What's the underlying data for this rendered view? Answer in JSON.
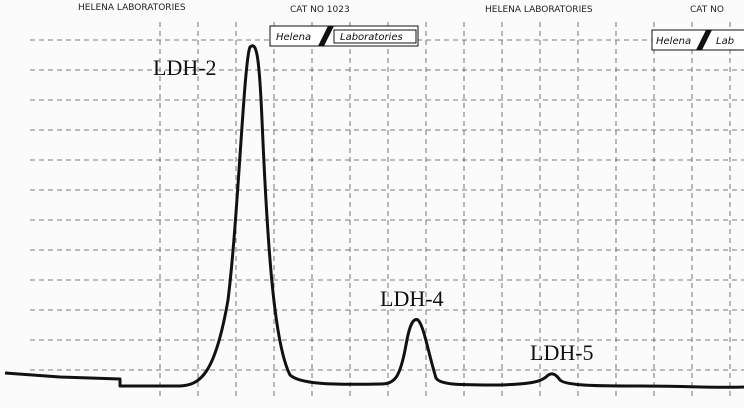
{
  "header": {
    "items": [
      "HELENA LABORATORIES",
      "CAT NO 1023",
      "HELENA LABORATORIES",
      "CAT NO"
    ]
  },
  "logos": [
    {
      "left": "Helena",
      "right": "Laboratories"
    },
    {
      "left": "Helena",
      "right": "Lab"
    }
  ],
  "peaks": [
    "LDH-2",
    "LDH-4",
    "LDH-5"
  ]
}
